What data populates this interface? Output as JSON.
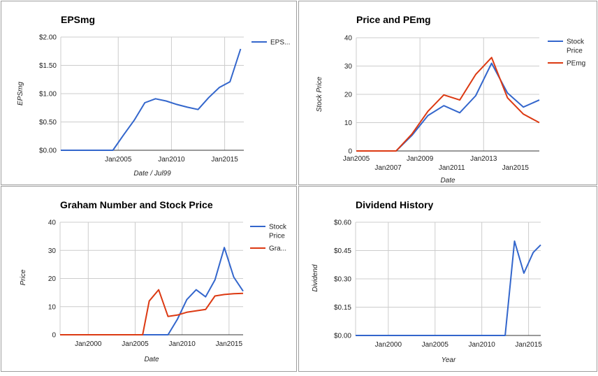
{
  "colors": {
    "blue": "#3366cc",
    "red": "#dc3912"
  },
  "chart_data": [
    {
      "type": "line",
      "title": "EPSmg",
      "xlabel": "Date / Jul99",
      "ylabel": "EPSmg",
      "xlim": [
        1999.6,
        2016.8
      ],
      "ylim": [
        0,
        2
      ],
      "yticks": [
        0,
        0.5,
        1,
        1.5,
        2
      ],
      "ytick_labels": [
        "$0.00",
        "$0.50",
        "$1.00",
        "$1.50",
        "$2.00"
      ],
      "xticks": [
        2005,
        2010,
        2015
      ],
      "xtick_labels": [
        "Jan2005",
        "Jan2010",
        "Jan2015"
      ],
      "vgrid": [
        2005,
        2010,
        2015
      ],
      "legend_position": "right",
      "series": [
        {
          "name": "EPS...",
          "color": "#3366cc",
          "x": [
            1999.6,
            2004.5,
            2005.5,
            2006.5,
            2007.5,
            2008.5,
            2009.5,
            2010.5,
            2011.5,
            2012.5,
            2013.5,
            2014.5,
            2015.5,
            2016.5
          ],
          "y": [
            0,
            0,
            0.27,
            0.53,
            0.84,
            0.91,
            0.87,
            0.81,
            0.76,
            0.72,
            0.93,
            1.11,
            1.21,
            1.79
          ]
        }
      ]
    },
    {
      "type": "line",
      "title": "Price and PEmg",
      "xlabel": "Date",
      "ylabel": "Stock Price",
      "xlim": [
        2005,
        2016.5
      ],
      "ylim": [
        0,
        40
      ],
      "yticks": [
        0,
        10,
        20,
        30,
        40
      ],
      "ytick_labels": [
        "0",
        "10",
        "20",
        "30",
        "40"
      ],
      "xticks": [
        2005,
        2007,
        2009,
        2011,
        2013,
        2015
      ],
      "xtick_labels": [
        "Jan2005",
        "Jan2007",
        "Jan2009",
        "Jan2011",
        "Jan2013",
        "Jan2015"
      ],
      "vgrid": [
        2009,
        2013
      ],
      "legend_position": "right",
      "series": [
        {
          "name": "Stock Price",
          "color": "#3366cc",
          "x": [
            2005,
            2007.5,
            2008.5,
            2009.5,
            2010.5,
            2011.5,
            2012.5,
            2013.5,
            2014.5,
            2015.5,
            2016.5
          ],
          "y": [
            0,
            0,
            5.5,
            12.5,
            16,
            13.5,
            19.5,
            31,
            20.5,
            15.5,
            18
          ]
        },
        {
          "name": "PEmg",
          "color": "#dc3912",
          "x": [
            2005,
            2007.5,
            2008.5,
            2009.5,
            2010.5,
            2011.5,
            2012.5,
            2013.5,
            2014.5,
            2015.5,
            2016.5
          ],
          "y": [
            0,
            0,
            6,
            14,
            19.8,
            18,
            27,
            33,
            18.8,
            13,
            10
          ]
        }
      ]
    },
    {
      "type": "line",
      "title": "Graham Number and Stock Price",
      "xlabel": "Date",
      "ylabel": "Price",
      "xlim": [
        1997,
        2016.5
      ],
      "ylim": [
        0,
        40
      ],
      "yticks": [
        0,
        10,
        20,
        30,
        40
      ],
      "ytick_labels": [
        "0",
        "10",
        "20",
        "30",
        "40"
      ],
      "xticks": [
        2000,
        2005,
        2010,
        2015
      ],
      "xtick_labels": [
        "Jan2000",
        "Jan2005",
        "Jan2010",
        "Jan2015"
      ],
      "vgrid": [
        2000,
        2005,
        2010,
        2015
      ],
      "legend_position": "right",
      "series": [
        {
          "name": "Stock Price",
          "color": "#3366cc",
          "x": [
            1997,
            2007.5,
            2008.5,
            2009.5,
            2010.5,
            2011.5,
            2012.5,
            2013.5,
            2014.5,
            2015.5,
            2016.5
          ],
          "y": [
            0,
            0,
            0,
            5.5,
            12.5,
            16,
            13.5,
            19.5,
            31,
            20.5,
            15.5
          ]
        },
        {
          "name": "Gra...",
          "color": "#dc3912",
          "x": [
            1997,
            2005.8,
            2006.5,
            2007.5,
            2008.5,
            2009.5,
            2010.5,
            2011.5,
            2012.5,
            2013.5,
            2014.5,
            2015.5,
            2016.5
          ],
          "y": [
            0,
            0,
            12,
            16,
            6.5,
            7,
            8,
            8.5,
            9,
            13.8,
            14.3,
            14.6,
            14.7
          ]
        }
      ]
    },
    {
      "type": "line",
      "title": "Dividend History",
      "xlabel": "Year",
      "ylabel": "Dividend",
      "xlim": [
        1996.5,
        2016.3
      ],
      "ylim": [
        0,
        0.6
      ],
      "yticks": [
        0,
        0.15,
        0.3,
        0.45,
        0.6
      ],
      "ytick_labels": [
        "$0.00",
        "$0.15",
        "$0.30",
        "$0.45",
        "$0.60"
      ],
      "xticks": [
        2000,
        2005,
        2010,
        2015
      ],
      "xtick_labels": [
        "Jan2000",
        "Jan2005",
        "Jan2010",
        "Jan2015"
      ],
      "vgrid": [
        2000,
        2005,
        2010,
        2015
      ],
      "legend_position": "none",
      "series": [
        {
          "color": "#3366cc",
          "x": [
            1996.5,
            2012.5,
            2013.5,
            2014.5,
            2015.5,
            2016.3
          ],
          "y": [
            0,
            0,
            0.5,
            0.33,
            0.44,
            0.48
          ]
        }
      ]
    }
  ]
}
